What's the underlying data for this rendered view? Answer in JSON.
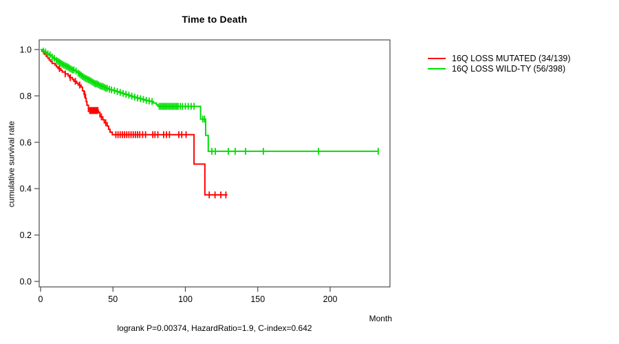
{
  "title": "Time to Death",
  "footnote": "logrank P=0.00374, HazardRatio=1.9, C-index=0.642",
  "axes": {
    "x": {
      "label": "Month",
      "ticks": [
        0,
        50,
        100,
        150,
        200
      ]
    },
    "y": {
      "label": "cumulative survival rate",
      "ticks": [
        "0.0",
        "0.2",
        "0.4",
        "0.6",
        "0.8",
        "1.0"
      ]
    }
  },
  "chart_data": {
    "type": "line",
    "subtype": "kaplan-meier-step",
    "title": "Time to Death",
    "xlabel": "Month",
    "ylabel": "cumulative survival rate",
    "xlim": [
      0,
      241
    ],
    "ylim": [
      0.0,
      1.0
    ],
    "grid": false,
    "legend_position": "right-outside",
    "censor_mark": "vertical-tick",
    "series": [
      {
        "name": "16Q LOSS MUTATED (34/139)",
        "color": "#ff0000",
        "points": [
          [
            0,
            1.0
          ],
          [
            1,
            0.993
          ],
          [
            2,
            0.985
          ],
          [
            3,
            0.978
          ],
          [
            4,
            0.97
          ],
          [
            5,
            0.963
          ],
          [
            6,
            0.955
          ],
          [
            7,
            0.948
          ],
          [
            8,
            0.94
          ],
          [
            10,
            0.933
          ],
          [
            11,
            0.925
          ],
          [
            12,
            0.918
          ],
          [
            14,
            0.91
          ],
          [
            15,
            0.903
          ],
          [
            17,
            0.895
          ],
          [
            19,
            0.887
          ],
          [
            20,
            0.879
          ],
          [
            22,
            0.871
          ],
          [
            23,
            0.863
          ],
          [
            25,
            0.855
          ],
          [
            26,
            0.847
          ],
          [
            28,
            0.838
          ],
          [
            29,
            0.822
          ],
          [
            30,
            0.806
          ],
          [
            31,
            0.79
          ],
          [
            31.5,
            0.775
          ],
          [
            32,
            0.76
          ],
          [
            33,
            0.745
          ],
          [
            34,
            0.737
          ],
          [
            40,
            0.729
          ],
          [
            41,
            0.71
          ],
          [
            43,
            0.697
          ],
          [
            44,
            0.684
          ],
          [
            46,
            0.67
          ],
          [
            47,
            0.656
          ],
          [
            48,
            0.644
          ],
          [
            49.5,
            0.633
          ],
          [
            106,
            0.506
          ],
          [
            113.5,
            0.373
          ],
          [
            129,
            0.373
          ]
        ],
        "censor_months": [
          13,
          17,
          20.5,
          24,
          27,
          30.5,
          33,
          34,
          34.7,
          35.4,
          36.1,
          36.8,
          37.5,
          38.2,
          38.9,
          39.6,
          42,
          45,
          52,
          53.5,
          55,
          56.5,
          58,
          59.5,
          61,
          62.5,
          64,
          65.5,
          67,
          68.5,
          70.5,
          72.5,
          77.5,
          79,
          81,
          85,
          87,
          89,
          95.5,
          97.5,
          100.5,
          116.5,
          120.5,
          124.5,
          128
        ]
      },
      {
        "name": "16Q LOSS WILD-TY (56/398)",
        "color": "#00dd00",
        "points": [
          [
            0,
            1.0
          ],
          [
            1,
            0.997
          ],
          [
            2,
            0.993
          ],
          [
            3,
            0.989
          ],
          [
            4,
            0.985
          ],
          [
            5,
            0.981
          ],
          [
            6,
            0.977
          ],
          [
            7,
            0.972
          ],
          [
            8,
            0.967
          ],
          [
            9,
            0.962
          ],
          [
            10,
            0.957
          ],
          [
            11,
            0.953
          ],
          [
            12,
            0.949
          ],
          [
            13,
            0.945
          ],
          [
            14,
            0.941
          ],
          [
            15,
            0.937
          ],
          [
            16,
            0.933
          ],
          [
            17,
            0.93
          ],
          [
            18,
            0.927
          ],
          [
            19,
            0.924
          ],
          [
            20,
            0.92
          ],
          [
            21,
            0.916
          ],
          [
            22,
            0.912
          ],
          [
            24,
            0.907
          ],
          [
            25,
            0.902
          ],
          [
            26,
            0.898
          ],
          [
            27,
            0.894
          ],
          [
            28,
            0.889
          ],
          [
            29,
            0.884
          ],
          [
            30,
            0.88
          ],
          [
            31,
            0.876
          ],
          [
            32,
            0.873
          ],
          [
            33,
            0.87
          ],
          [
            34,
            0.867
          ],
          [
            35,
            0.863
          ],
          [
            36,
            0.859
          ],
          [
            37,
            0.855
          ],
          [
            38,
            0.852
          ],
          [
            40,
            0.848
          ],
          [
            41,
            0.844
          ],
          [
            42,
            0.841
          ],
          [
            44,
            0.837
          ],
          [
            45,
            0.833
          ],
          [
            47,
            0.829
          ],
          [
            48,
            0.826
          ],
          [
            50,
            0.823
          ],
          [
            52,
            0.819
          ],
          [
            54,
            0.815
          ],
          [
            56,
            0.811
          ],
          [
            58,
            0.807
          ],
          [
            60,
            0.803
          ],
          [
            62,
            0.799
          ],
          [
            64,
            0.795
          ],
          [
            66,
            0.791
          ],
          [
            68,
            0.788
          ],
          [
            70,
            0.785
          ],
          [
            72,
            0.781
          ],
          [
            74,
            0.778
          ],
          [
            76,
            0.776
          ],
          [
            78,
            0.769
          ],
          [
            80,
            0.762
          ],
          [
            81,
            0.755
          ],
          [
            110.5,
            0.7
          ],
          [
            114,
            0.63
          ],
          [
            115.8,
            0.561
          ],
          [
            233.5,
            0.561
          ]
        ],
        "censor_months": [
          2,
          3.5,
          5,
          6.5,
          8,
          9.5,
          11,
          12,
          13,
          14,
          15,
          16,
          17,
          18,
          19,
          20,
          21,
          22,
          23,
          24.5,
          26,
          27,
          28,
          29,
          30,
          31,
          32,
          33,
          34,
          35,
          36,
          37,
          38,
          39,
          40,
          41,
          42,
          43,
          44,
          45,
          46,
          47.5,
          49,
          51,
          53,
          55,
          57,
          59,
          61,
          63,
          65,
          67,
          69,
          71,
          73,
          75,
          77,
          82,
          83,
          84,
          85,
          86,
          87,
          88,
          89,
          90,
          91,
          92,
          93,
          94,
          95,
          96.5,
          98,
          100,
          102,
          104,
          106,
          112,
          113.2,
          118.3,
          120.7,
          129.7,
          134.4,
          141.6,
          153.9,
          192,
          233.2
        ]
      }
    ]
  }
}
